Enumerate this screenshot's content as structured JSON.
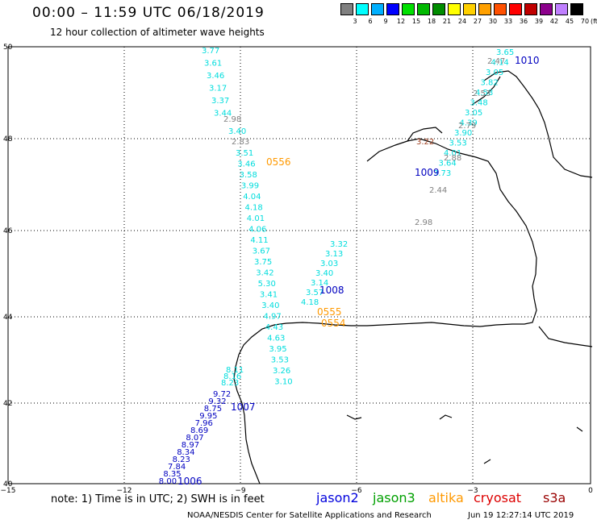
{
  "header": {
    "title": "00:00 – 11:59 UTC 06/18/2019",
    "subtitle": "12 hour collection of altimeter wave heights"
  },
  "color_scale": {
    "unit": "(ft)",
    "bins": [
      {
        "label": "3",
        "color": "#808080"
      },
      {
        "label": "6",
        "color": "#00ffff"
      },
      {
        "label": "9",
        "color": "#00b0ff"
      },
      {
        "label": "12",
        "color": "#0000ff"
      },
      {
        "label": "15",
        "color": "#00e000"
      },
      {
        "label": "18",
        "color": "#00b800"
      },
      {
        "label": "21",
        "color": "#008c00"
      },
      {
        "label": "24",
        "color": "#ffff00"
      },
      {
        "label": "27",
        "color": "#ffd000"
      },
      {
        "label": "30",
        "color": "#ffa000"
      },
      {
        "label": "33",
        "color": "#ff5000"
      },
      {
        "label": "36",
        "color": "#ff0000"
      },
      {
        "label": "39",
        "color": "#c00000"
      },
      {
        "label": "42",
        "color": "#8c008c"
      },
      {
        "label": "45",
        "color": "#c080ff"
      },
      {
        "label": "70",
        "color": "#000000"
      }
    ]
  },
  "axes": {
    "lon_labels": [
      "−15",
      "−12",
      "−9",
      "−6",
      "−3",
      "0"
    ],
    "lat_labels": [
      "50",
      "48",
      "46",
      "44",
      "42",
      "40"
    ]
  },
  "colors": {
    "gray": "#808080",
    "cyan": "#00dddd",
    "blue": "#0000c0",
    "orange": "#ff9900",
    "brown": "#a04020"
  },
  "tracks": [
    {
      "color": "cyan",
      "values": [
        "3.77",
        "3.61",
        "3.46",
        "3.17",
        "3.37",
        "3.44"
      ]
    },
    {
      "color": "gray",
      "values": [
        "2.98"
      ]
    },
    {
      "color": "cyan",
      "values": [
        "3.40"
      ]
    },
    {
      "color": "gray",
      "values": [
        "2.83"
      ]
    },
    {
      "color": "cyan",
      "values": [
        "3.51",
        "3.46",
        "3.58",
        "3.99",
        "4.04",
        "4.18",
        "4.01",
        "4.06",
        "4.11",
        "3.67",
        "3.75",
        "3.42",
        "5.30",
        "3.41",
        "3.40",
        "4.97",
        "4.43",
        "4.63",
        "3.95",
        "3.53",
        "3.26",
        "3.10"
      ]
    },
    {
      "color": "cyan",
      "values": [
        "3.65",
        "4.14",
        "3.05",
        "3.82",
        "4.58",
        "3.48",
        "3.05",
        "4.39",
        "3.90",
        "3.53",
        "4.01",
        "3.64",
        "3.73"
      ]
    },
    {
      "color": "gray",
      "values": [
        "2.47",
        "2.53",
        "2.79",
        "2.88",
        "2.44",
        "2.98"
      ]
    },
    {
      "color": "brown",
      "values": [
        "3.22"
      ]
    },
    {
      "color": "cyan",
      "values": [
        "3.32",
        "3.13",
        "3.03",
        "3.40",
        "3.14",
        "3.57",
        "4.18"
      ]
    },
    {
      "color": "cyan",
      "values": [
        "8.11",
        "8.16",
        "8.23"
      ]
    },
    {
      "color": "blue",
      "values": [
        "9.72",
        "9.32",
        "8.75",
        "9.95",
        "7.96",
        "8.69",
        "8.07",
        "8.97",
        "8.34",
        "8.23",
        "7.84",
        "8.35",
        "8.00"
      ]
    }
  ],
  "time_labels": [
    {
      "text": "1010",
      "color": "blue"
    },
    {
      "text": "1009",
      "color": "blue"
    },
    {
      "text": "0556",
      "color": "orange"
    },
    {
      "text": "1008",
      "color": "blue"
    },
    {
      "text": "0555",
      "color": "orange"
    },
    {
      "text": "0554",
      "color": "orange"
    },
    {
      "text": "1007",
      "color": "blue"
    },
    {
      "text": "1006",
      "color": "blue"
    }
  ],
  "footer": {
    "note": "note: 1) Time is in UTC; 2) SWH is in feet",
    "legend": [
      {
        "name": "jason2",
        "color": "#0000dd"
      },
      {
        "name": "jason3",
        "color": "#00a000"
      },
      {
        "name": "altika",
        "color": "#ff9900"
      },
      {
        "name": "cryosat",
        "color": "#dd0000"
      },
      {
        "name": "s3a",
        "color": "#990000"
      }
    ],
    "credit": "NOAA/NESDIS Center for Satellite Applications and Research",
    "generated": "Jun 19 12:27:14 UTC 2019"
  }
}
